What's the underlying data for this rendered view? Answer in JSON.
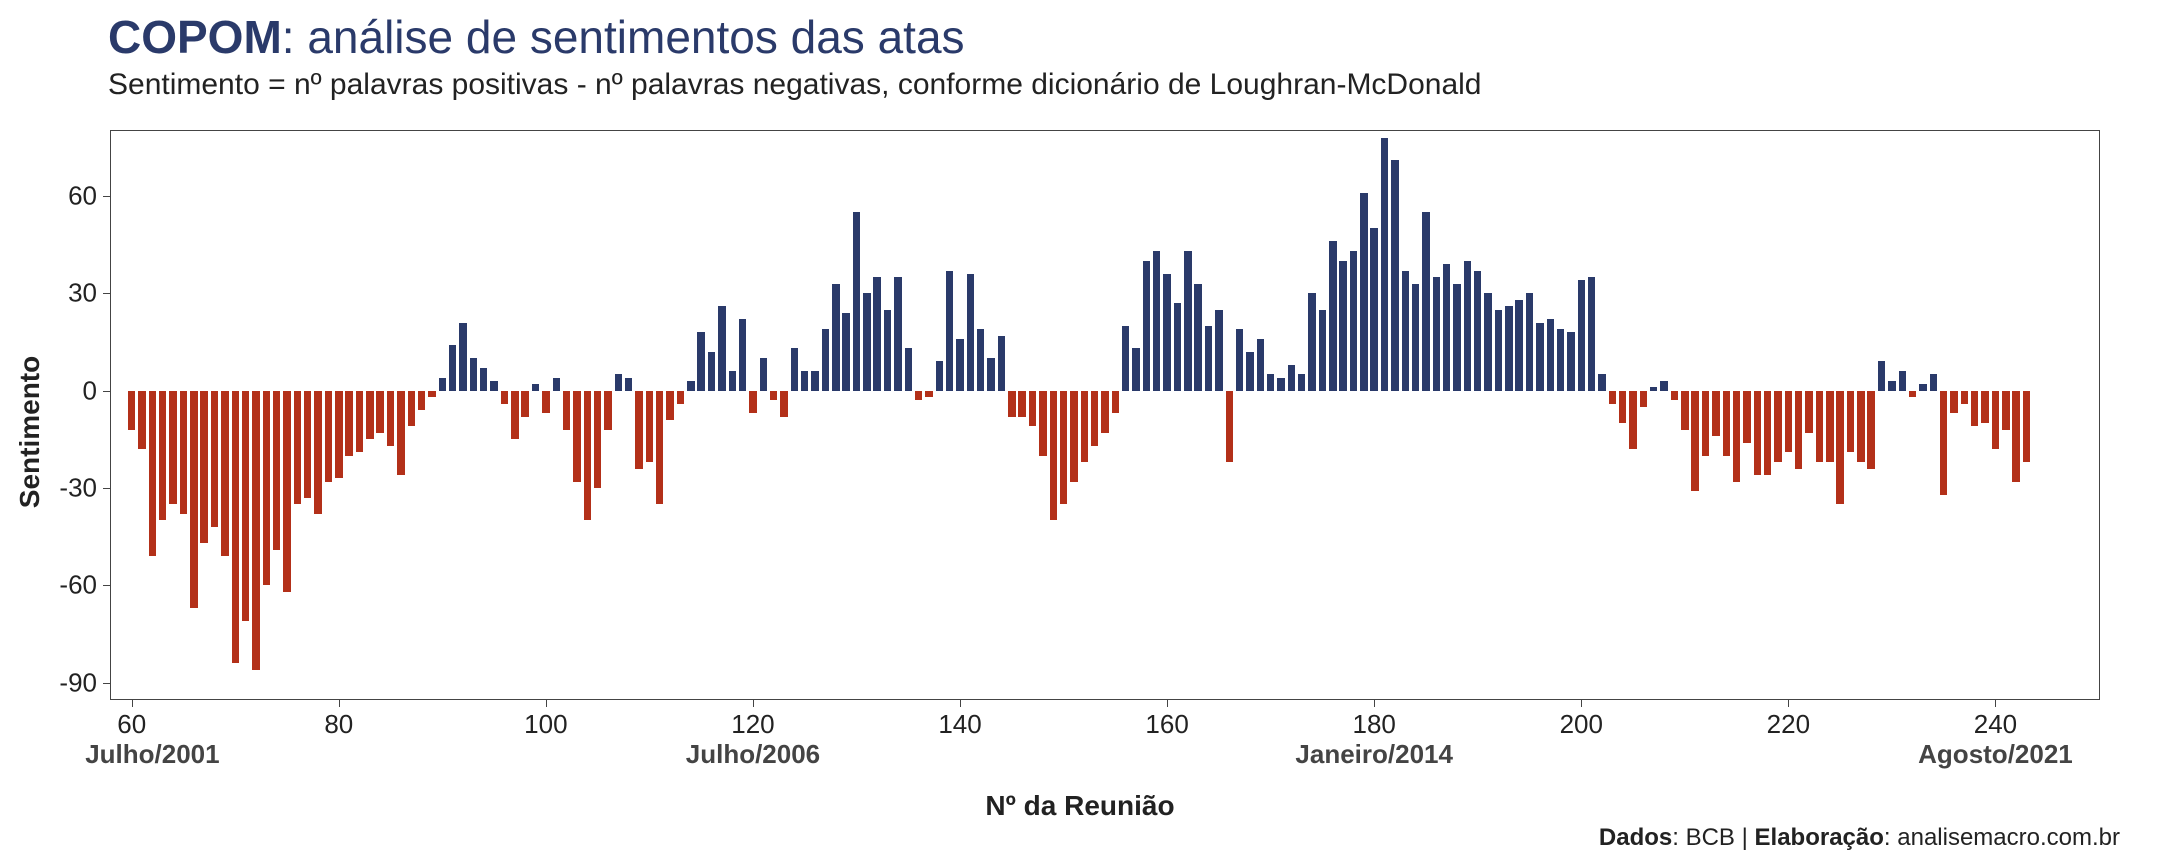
{
  "title": {
    "bold": "COPOM",
    "rest": ": análise de sentimentos das atas"
  },
  "subtitle": "Sentimento = nº palavras positivas - nº palavras negativas, conforme dicionário de Loughran-McDonald",
  "ylabel": "Sentimento",
  "xlabel": "Nº da Reunião",
  "caption": {
    "dados_label": "Dados",
    "dados_value": ": BCB | ",
    "elab_label": "Elaboração",
    "elab_value": ": analisemacro.com.br"
  },
  "chart": {
    "type": "bar",
    "background_color": "#ffffff",
    "border_color": "#444444",
    "positive_color": "#2a3a6a",
    "negative_color": "#b33019",
    "bar_width_ratio": 0.72,
    "ylim": [
      -95,
      80
    ],
    "yticks": [
      -90,
      -60,
      -30,
      0,
      30,
      60
    ],
    "xlim": [
      58,
      250
    ],
    "xticks": [
      60,
      80,
      100,
      120,
      140,
      160,
      180,
      200,
      220,
      240
    ],
    "tick_fontsize": 26,
    "label_fontsize": 28,
    "x_annotations": [
      {
        "x": 62,
        "text": "Julho/2001"
      },
      {
        "x": 120,
        "text": "Julho/2006"
      },
      {
        "x": 180,
        "text": "Janeiro/2014"
      },
      {
        "x": 240,
        "text": "Agosto/2021"
      }
    ],
    "x_start": 60,
    "values": [
      -12,
      -18,
      -51,
      -40,
      -35,
      -38,
      -67,
      -47,
      -42,
      -51,
      -84,
      -71,
      -86,
      -60,
      -49,
      -62,
      -35,
      -33,
      -38,
      -28,
      -27,
      -20,
      -19,
      -15,
      -13,
      -17,
      -26,
      -11,
      -6,
      -2,
      4,
      14,
      21,
      10,
      7,
      3,
      -4,
      -15,
      -8,
      2,
      -7,
      4,
      -12,
      -28,
      -40,
      -30,
      -12,
      5,
      4,
      -24,
      -22,
      -35,
      -9,
      -4,
      3,
      18,
      12,
      26,
      6,
      22,
      -7,
      10,
      -3,
      -8,
      13,
      6,
      6,
      19,
      33,
      24,
      55,
      30,
      35,
      25,
      35,
      13,
      -3,
      -2,
      9,
      37,
      16,
      36,
      19,
      10,
      17,
      -8,
      -8,
      -11,
      -20,
      -40,
      -35,
      -28,
      -22,
      -17,
      -13,
      -7,
      20,
      13,
      40,
      43,
      36,
      27,
      43,
      33,
      20,
      25,
      -22,
      19,
      12,
      16,
      5,
      4,
      8,
      5,
      30,
      25,
      46,
      40,
      43,
      61,
      50,
      78,
      71,
      37,
      33,
      55,
      35,
      39,
      33,
      40,
      37,
      30,
      25,
      26,
      28,
      30,
      21,
      22,
      19,
      18,
      34,
      35,
      5,
      -4,
      -10,
      -18,
      -5,
      1,
      3,
      -3,
      -12,
      -31,
      -20,
      -14,
      -20,
      -28,
      -16,
      -26,
      -26,
      -22,
      -19,
      -24,
      -13,
      -22,
      -22,
      -35,
      -19,
      -22,
      -24,
      9,
      3,
      6,
      -2,
      2,
      5,
      -32,
      -7,
      -4,
      -11,
      -10,
      -18,
      -12,
      -28,
      -22
    ]
  }
}
